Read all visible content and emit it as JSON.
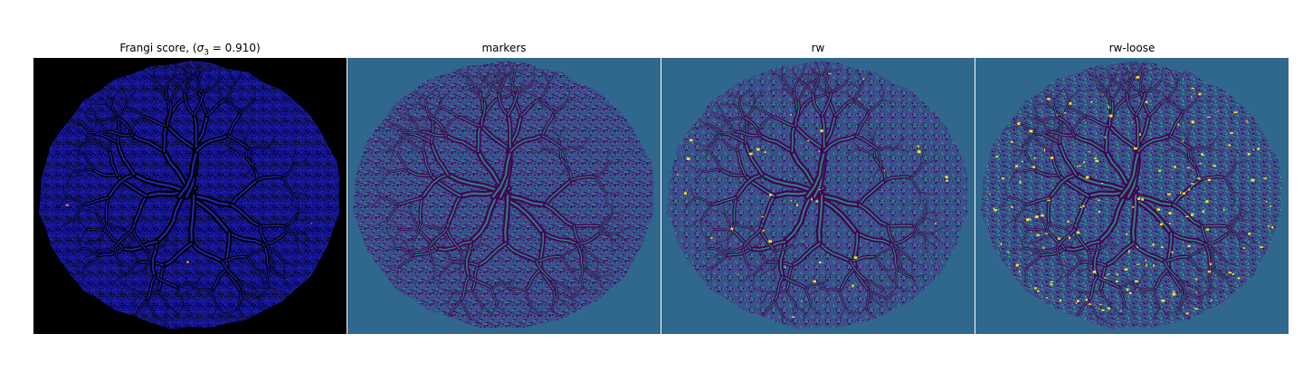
{
  "figure": {
    "panels": [
      {
        "id": "frangi",
        "title_prefix": "Frangi score, (",
        "title_symbol": "σ",
        "title_subscript": "3",
        "title_suffix": " = 0.910)",
        "background": "#000000",
        "disc_color": "#14148a",
        "vessel_color": "#2a2ae0",
        "dark_color": "#000000",
        "highlight_color": "#ff9a3c"
      },
      {
        "id": "markers",
        "title": "markers",
        "background": "#30678d",
        "disc_color": "#3b4f8c",
        "vessel_color": "#21a585",
        "dark_color": "#440154",
        "highlight_color": "#21a585"
      },
      {
        "id": "rw",
        "title": "rw",
        "background": "#30678d",
        "disc_color": "#3b4f8c",
        "vessel_color": "#22a884",
        "dark_color": "#440154",
        "highlight_color": "#fde725"
      },
      {
        "id": "rw-loose",
        "title": "rw-loose",
        "background": "#30678d",
        "disc_color": "#3b4f8c",
        "vessel_color": "#22a884",
        "dark_color": "#440154",
        "highlight_color": "#fde725"
      }
    ]
  }
}
